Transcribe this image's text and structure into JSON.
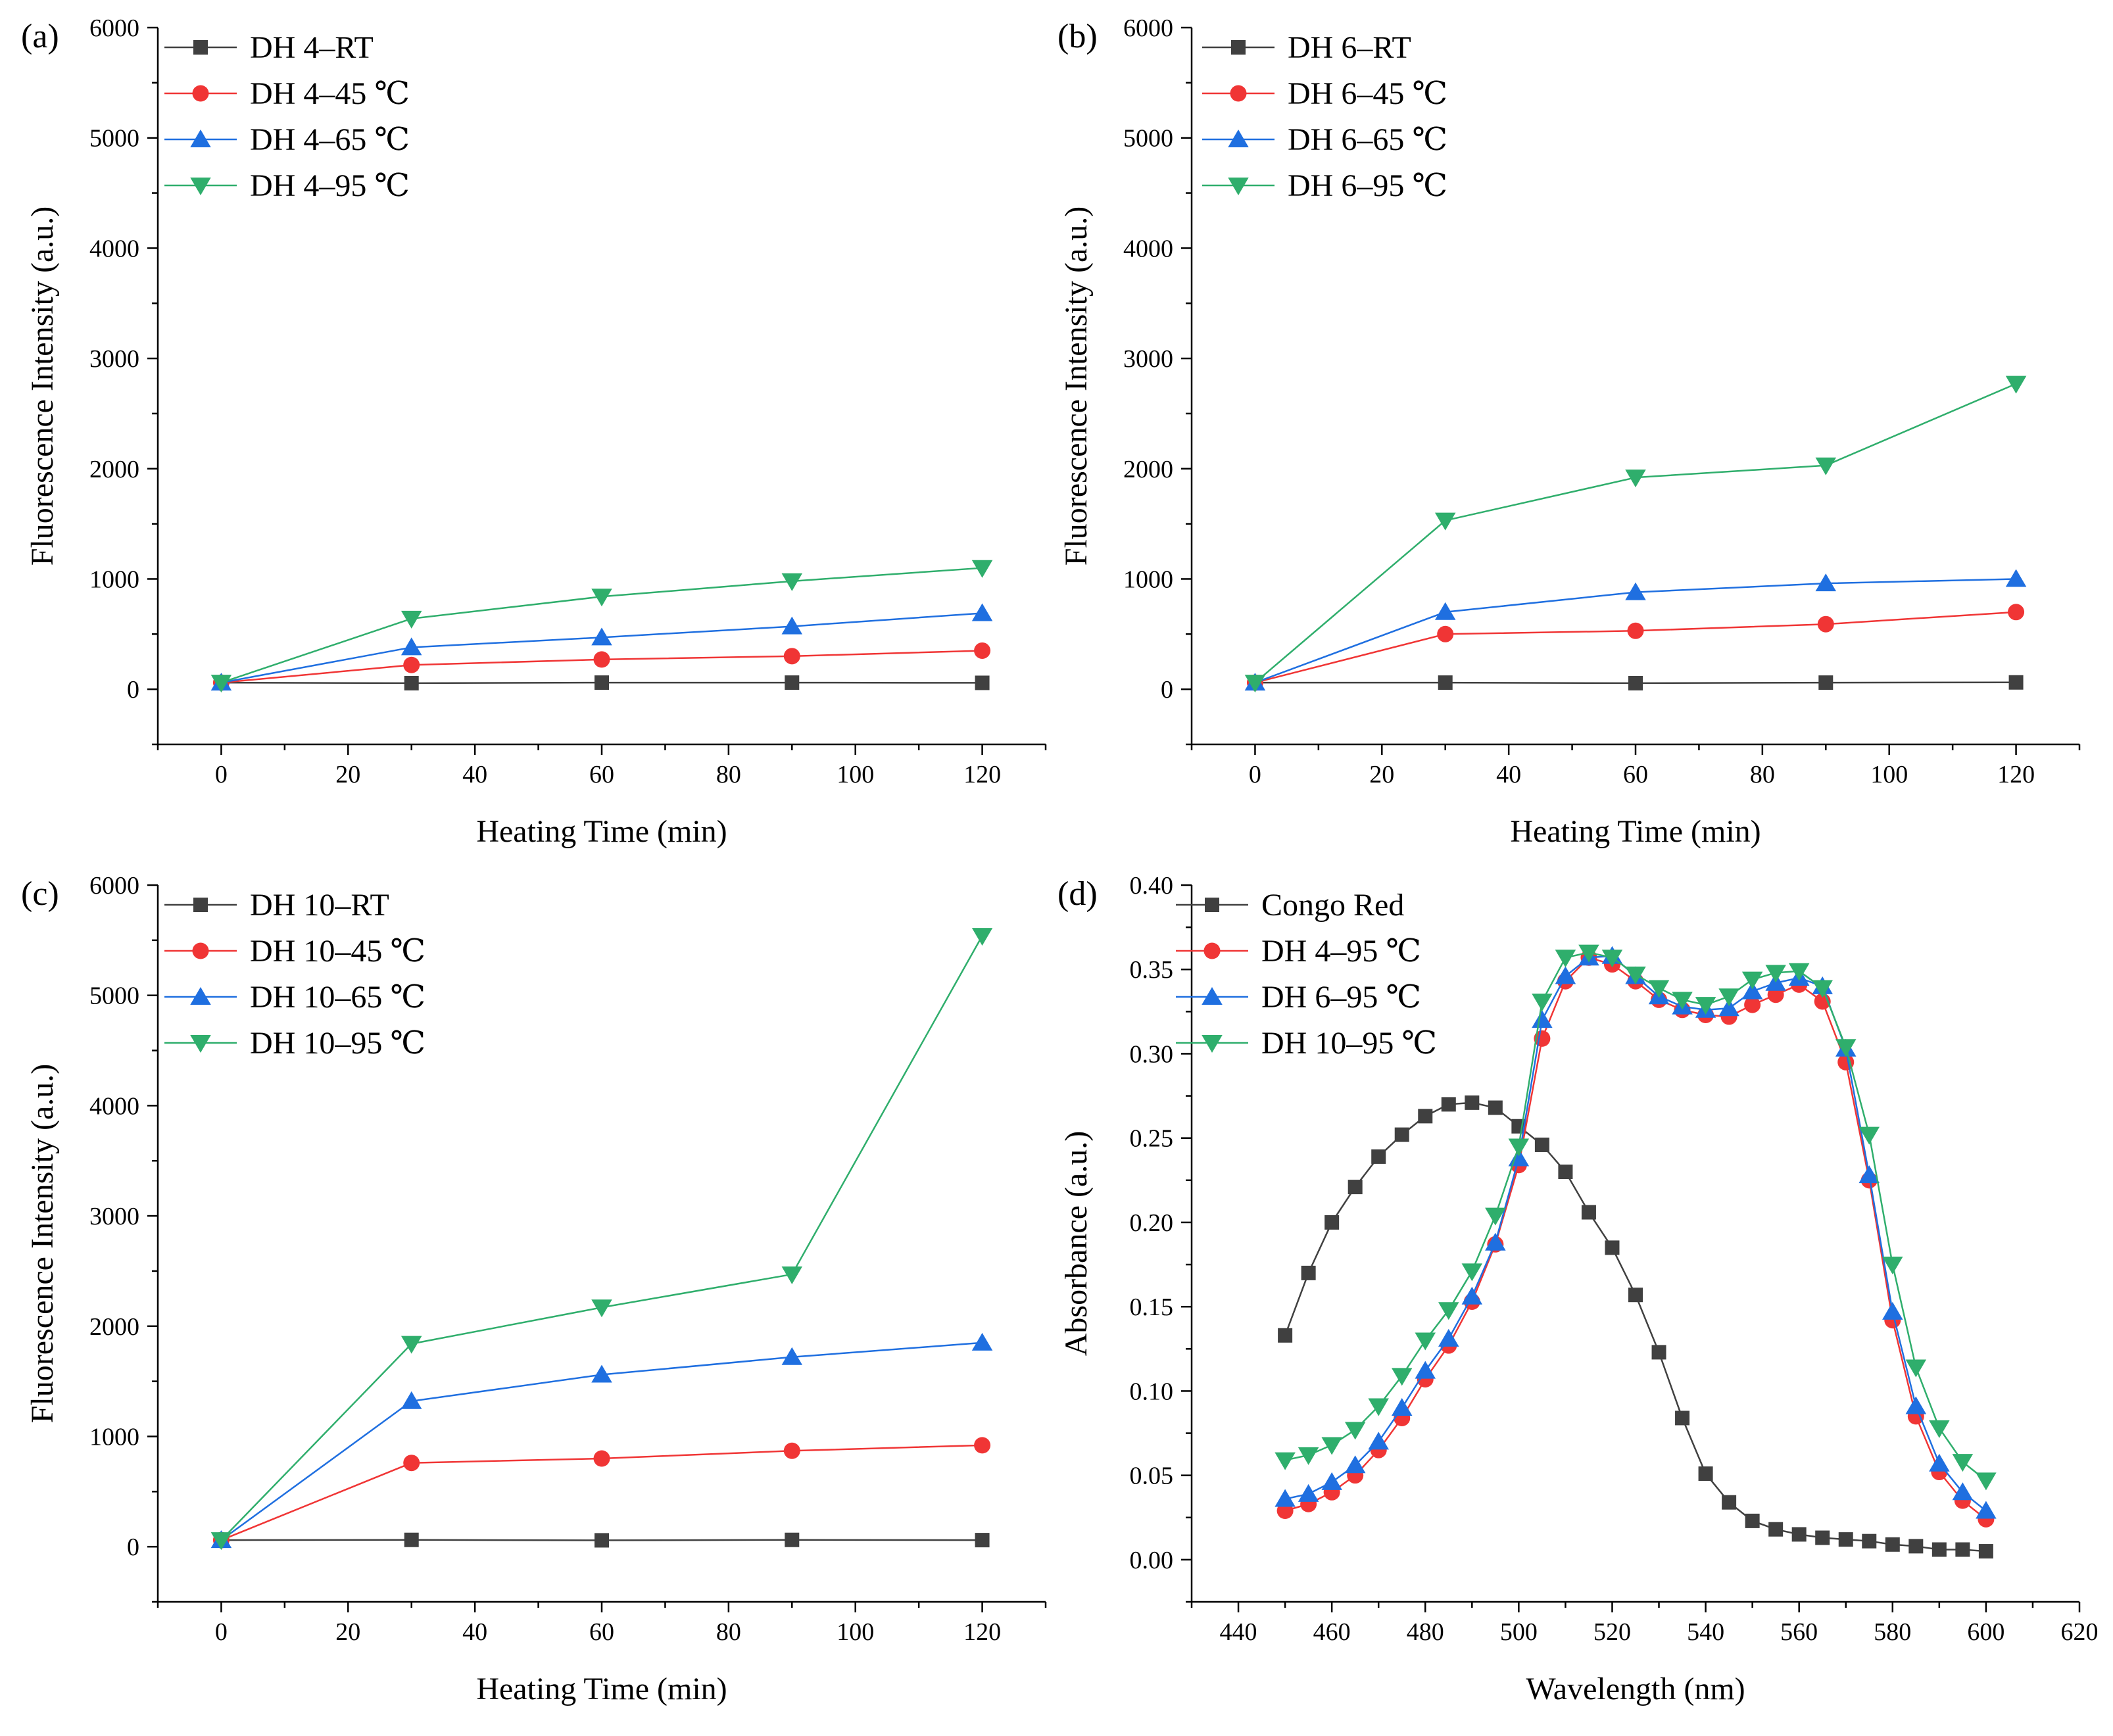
{
  "colors": {
    "black_series": "#404040",
    "red_series": "#f03535",
    "blue_series": "#1f6fe0",
    "green_series": "#2fae6c",
    "axis": "#000000"
  },
  "chart_data": [
    {
      "id": "a",
      "panel_label": "(a)",
      "type": "line",
      "xlabel": "Heating Time (min)",
      "ylabel": "Fluorescence Intensity (a.u.)",
      "xlim": [
        -10,
        130
      ],
      "ylim": [
        -500,
        6000
      ],
      "xticks": [
        0,
        20,
        40,
        60,
        80,
        100,
        120
      ],
      "yticks": [
        0,
        1000,
        2000,
        3000,
        4000,
        5000,
        6000
      ],
      "legend_position": "top-left",
      "x": [
        0,
        30,
        60,
        90,
        120
      ],
      "series": [
        {
          "name": "DH 4–RT",
          "marker": "square",
          "color_key": "black_series",
          "values": [
            60,
            55,
            60,
            60,
            58
          ]
        },
        {
          "name": "DH 4–45 ℃",
          "marker": "circle",
          "color_key": "red_series",
          "values": [
            60,
            220,
            270,
            300,
            350
          ]
        },
        {
          "name": "DH 4–65 ℃",
          "marker": "triangle-up",
          "color_key": "blue_series",
          "values": [
            60,
            380,
            470,
            570,
            690
          ]
        },
        {
          "name": "DH 4–95 ℃",
          "marker": "triangle-down",
          "color_key": "green_series",
          "values": [
            60,
            640,
            840,
            980,
            1100
          ]
        }
      ]
    },
    {
      "id": "b",
      "panel_label": "(b)",
      "type": "line",
      "xlabel": "Heating Time (min)",
      "ylabel": "Fluorescence Intensity (a.u.)",
      "xlim": [
        -10,
        130
      ],
      "ylim": [
        -500,
        6000
      ],
      "xticks": [
        0,
        20,
        40,
        60,
        80,
        100,
        120
      ],
      "yticks": [
        0,
        1000,
        2000,
        3000,
        4000,
        5000,
        6000
      ],
      "legend_position": "top-left",
      "x": [
        0,
        30,
        60,
        90,
        120
      ],
      "series": [
        {
          "name": "DH 6–RT",
          "marker": "square",
          "color_key": "black_series",
          "values": [
            60,
            60,
            55,
            60,
            62
          ]
        },
        {
          "name": "DH 6–45 ℃",
          "marker": "circle",
          "color_key": "red_series",
          "values": [
            60,
            500,
            530,
            590,
            700
          ]
        },
        {
          "name": "DH 6–65 ℃",
          "marker": "triangle-up",
          "color_key": "blue_series",
          "values": [
            60,
            700,
            880,
            960,
            1000
          ]
        },
        {
          "name": "DH 6–95 ℃",
          "marker": "triangle-down",
          "color_key": "green_series",
          "values": [
            60,
            1530,
            1920,
            2030,
            2770
          ]
        }
      ]
    },
    {
      "id": "c",
      "panel_label": "(c)",
      "type": "line",
      "xlabel": "Heating Time (min)",
      "ylabel": "Fluorescence Intensity (a.u.)",
      "xlim": [
        -10,
        130
      ],
      "ylim": [
        -500,
        6000
      ],
      "xticks": [
        0,
        20,
        40,
        60,
        80,
        100,
        120
      ],
      "yticks": [
        0,
        1000,
        2000,
        3000,
        4000,
        5000,
        6000
      ],
      "legend_position": "top-left",
      "x": [
        0,
        30,
        60,
        90,
        120
      ],
      "series": [
        {
          "name": "DH 10–RT",
          "marker": "square",
          "color_key": "black_series",
          "values": [
            60,
            62,
            58,
            62,
            60
          ]
        },
        {
          "name": "DH 10–45 ℃",
          "marker": "circle",
          "color_key": "red_series",
          "values": [
            60,
            760,
            800,
            870,
            920
          ]
        },
        {
          "name": "DH 10–65 ℃",
          "marker": "triangle-up",
          "color_key": "blue_series",
          "values": [
            60,
            1320,
            1560,
            1720,
            1850
          ]
        },
        {
          "name": "DH 10–95 ℃",
          "marker": "triangle-down",
          "color_key": "green_series",
          "values": [
            60,
            1840,
            2170,
            2470,
            5540
          ]
        }
      ]
    },
    {
      "id": "d",
      "panel_label": "(d)",
      "type": "line",
      "xlabel": "Wavelength (nm)",
      "ylabel": "Absorbance (a.u.)",
      "xlim": [
        430,
        620
      ],
      "ylim": [
        -0.025,
        0.4
      ],
      "xticks": [
        440,
        460,
        480,
        500,
        520,
        540,
        560,
        580,
        600,
        620
      ],
      "yticks": [
        0.0,
        0.05,
        0.1,
        0.15,
        0.2,
        0.25,
        0.3,
        0.35,
        0.4
      ],
      "ytick_decimals": 2,
      "legend_position": "top-left",
      "x": [
        450,
        455,
        460,
        465,
        470,
        475,
        480,
        485,
        490,
        495,
        500,
        505,
        510,
        515,
        520,
        525,
        530,
        535,
        540,
        545,
        550,
        555,
        560,
        565,
        570,
        575,
        580,
        585,
        590,
        595,
        600
      ],
      "series": [
        {
          "name": "Congo Red",
          "marker": "square",
          "color_key": "black_series",
          "values": [
            0.133,
            0.17,
            0.2,
            0.221,
            0.239,
            0.252,
            0.263,
            0.27,
            0.271,
            0.268,
            0.257,
            0.246,
            0.23,
            0.206,
            0.185,
            0.157,
            0.123,
            0.084,
            0.051,
            0.034,
            0.023,
            0.018,
            0.015,
            0.013,
            0.012,
            0.011,
            0.009,
            0.008,
            0.006,
            0.006,
            0.005
          ]
        },
        {
          "name": "DH 4–95 ℃",
          "marker": "circle",
          "color_key": "red_series",
          "values": [
            0.029,
            0.033,
            0.04,
            0.05,
            0.065,
            0.084,
            0.107,
            0.127,
            0.153,
            0.187,
            0.234,
            0.309,
            0.343,
            0.357,
            0.353,
            0.343,
            0.332,
            0.326,
            0.323,
            0.322,
            0.329,
            0.335,
            0.341,
            0.331,
            0.295,
            0.225,
            0.142,
            0.085,
            0.052,
            0.035,
            0.024
          ]
        },
        {
          "name": "DH 6–95 ℃",
          "marker": "triangle-up",
          "color_key": "blue_series",
          "values": [
            0.036,
            0.039,
            0.046,
            0.056,
            0.07,
            0.09,
            0.112,
            0.131,
            0.156,
            0.188,
            0.238,
            0.32,
            0.346,
            0.357,
            0.358,
            0.346,
            0.334,
            0.328,
            0.326,
            0.327,
            0.337,
            0.342,
            0.345,
            0.34,
            0.303,
            0.228,
            0.147,
            0.091,
            0.057,
            0.04,
            0.029
          ]
        },
        {
          "name": "DH 10–95 ℃",
          "marker": "triangle-down",
          "color_key": "green_series",
          "values": [
            0.059,
            0.062,
            0.068,
            0.077,
            0.091,
            0.109,
            0.13,
            0.148,
            0.171,
            0.204,
            0.245,
            0.331,
            0.357,
            0.36,
            0.357,
            0.347,
            0.339,
            0.332,
            0.329,
            0.334,
            0.344,
            0.348,
            0.349,
            0.339,
            0.304,
            0.252,
            0.175,
            0.114,
            0.078,
            0.058,
            0.047
          ]
        }
      ]
    }
  ]
}
